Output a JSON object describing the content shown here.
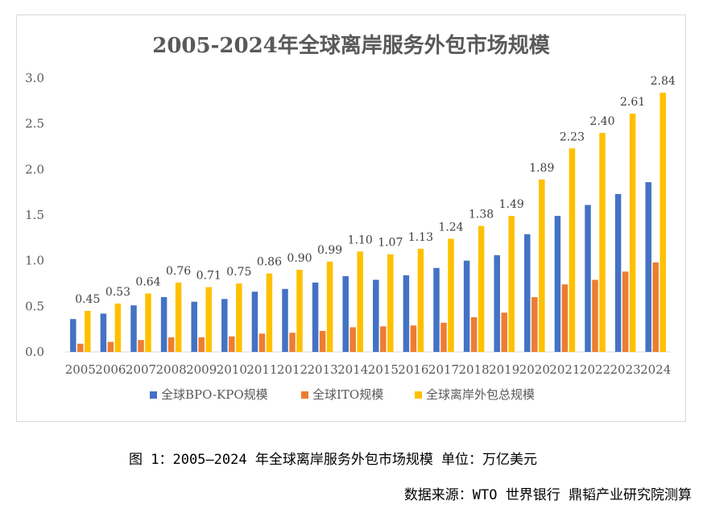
{
  "caption": "图 1：2005—2024 年全球离岸服务外包市场规模   单位：万亿美元",
  "source": "数据来源：WTO 世界银行 鼎韬产业研究院测算",
  "chart_data": {
    "type": "bar",
    "title": "2005-2024年全球离岸服务外包市场规模",
    "categories": [
      "2005",
      "2006",
      "2007",
      "2008",
      "2009",
      "2010",
      "2011",
      "2012",
      "2013",
      "2014",
      "2015",
      "2016",
      "2017",
      "2018",
      "2019",
      "2020",
      "2021",
      "2022",
      "2023",
      "2024"
    ],
    "series": [
      {
        "name": "全球BPO-KPO规模",
        "color": "#4472c4",
        "values": [
          0.36,
          0.42,
          0.51,
          0.6,
          0.55,
          0.58,
          0.66,
          0.69,
          0.76,
          0.83,
          0.79,
          0.84,
          0.92,
          1.0,
          1.06,
          1.29,
          1.49,
          1.61,
          1.73,
          1.86
        ]
      },
      {
        "name": "全球ITO规模",
        "color": "#ed7d31",
        "values": [
          0.09,
          0.11,
          0.13,
          0.16,
          0.16,
          0.17,
          0.2,
          0.21,
          0.23,
          0.27,
          0.28,
          0.29,
          0.32,
          0.38,
          0.43,
          0.6,
          0.74,
          0.79,
          0.88,
          0.98
        ]
      },
      {
        "name": "全球离岸外包总规模",
        "color": "#ffc000",
        "values": [
          0.45,
          0.53,
          0.64,
          0.76,
          0.71,
          0.75,
          0.86,
          0.9,
          0.99,
          1.1,
          1.07,
          1.13,
          1.24,
          1.38,
          1.49,
          1.89,
          2.23,
          2.4,
          2.61,
          2.84
        ],
        "labels": [
          "0.45",
          "0.53",
          "0.64",
          "0.76",
          "0.71",
          "0.75",
          "0.86",
          "0.90",
          "0.99",
          "1.10",
          "1.07",
          "1.13",
          "1.24",
          "1.38",
          "1.49",
          "1.89",
          "2.23",
          "2.40",
          "2.61",
          "2.84"
        ]
      }
    ],
    "ylim": [
      0,
      3.0
    ],
    "yticks": [
      "0.0",
      "0.5",
      "1.0",
      "1.5",
      "2.0",
      "2.5",
      "3.0"
    ],
    "grid": false,
    "legend": "bottom"
  }
}
